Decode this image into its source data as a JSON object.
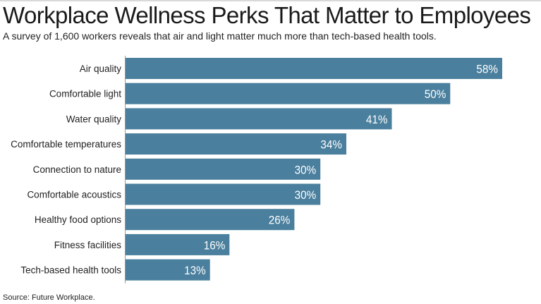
{
  "header": {
    "title": "Workplace Wellness Perks That Matter to Employees",
    "subtitle": "A survey of 1,600 workers reveals that air and light matter much more than tech-based health tools."
  },
  "footer": {
    "source": "Source: Future Workplace."
  },
  "colors": {
    "bar": "#4a7f9d",
    "bar_label": "#ffffff",
    "axis": "#999999"
  },
  "chart_data": {
    "type": "bar",
    "orientation": "horizontal",
    "categories": [
      "Air quality",
      "Comfortable light",
      "Water quality",
      "Comfortable temperatures",
      "Connection to nature",
      "Comfortable acoustics",
      "Healthy food options",
      "Fitness facilities",
      "Tech-based health tools"
    ],
    "values": [
      58,
      50,
      41,
      34,
      30,
      30,
      26,
      16,
      13
    ],
    "value_labels": [
      "58%",
      "50%",
      "41%",
      "34%",
      "30%",
      "30%",
      "26%",
      "16%",
      "13%"
    ],
    "xlim": [
      0,
      58
    ],
    "grid": false,
    "legend": "none"
  }
}
